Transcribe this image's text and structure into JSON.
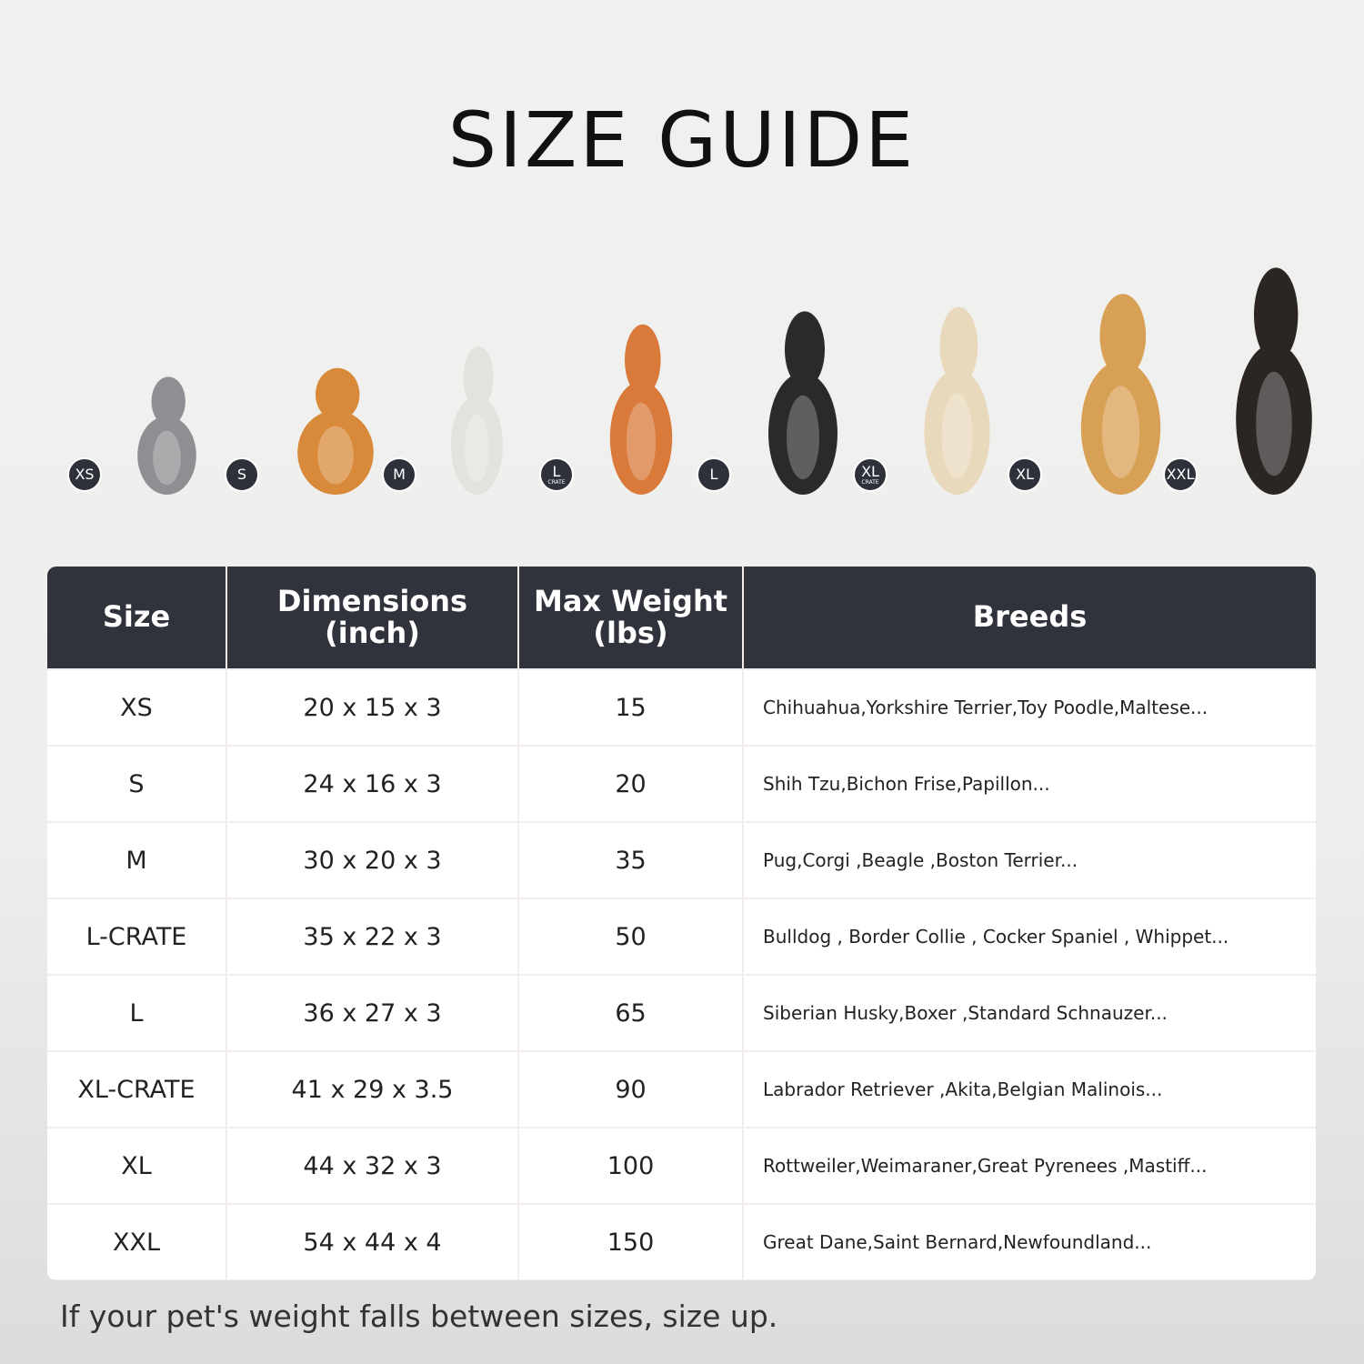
{
  "title": "SIZE GUIDE",
  "pets": [
    {
      "badge": "XS",
      "sub": "",
      "animal": "cat",
      "color": "#8f8f93"
    },
    {
      "badge": "S",
      "sub": "",
      "animal": "pomeranian",
      "color": "#d88a3a"
    },
    {
      "badge": "M",
      "sub": "",
      "animal": "french-bulldog",
      "color": "#e4e2de"
    },
    {
      "badge": "L",
      "sub": "CRATE",
      "animal": "shiba-inu",
      "color": "#d9793a"
    },
    {
      "badge": "L",
      "sub": "",
      "animal": "border-collie",
      "color": "#2a2a2a"
    },
    {
      "badge": "XL",
      "sub": "CRATE",
      "animal": "labrador",
      "color": "#e8d8bc"
    },
    {
      "badge": "XL",
      "sub": "",
      "animal": "golden-retriever",
      "color": "#d8a055"
    },
    {
      "badge": "XXL",
      "sub": "",
      "animal": "doberman",
      "color": "#2b2523"
    }
  ],
  "table": {
    "headers": [
      "Size",
      "Dimensions\n(inch)",
      "Max Weight\n(lbs)",
      "Breeds"
    ],
    "rows": [
      [
        "XS",
        "20 x 15 x 3",
        "15",
        "Chihuahua,Yorkshire Terrier,Toy Poodle,Maltese..."
      ],
      [
        "S",
        "24 x 16 x 3",
        "20",
        "Shih Tzu,Bichon Frise,Papillon..."
      ],
      [
        "M",
        "30 x 20 x 3",
        "35",
        "Pug,Corgi ,Beagle ,Boston Terrier..."
      ],
      [
        "L-CRATE",
        "35 x 22 x 3",
        "50",
        "Bulldog , Border Collie , Cocker Spaniel , Whippet..."
      ],
      [
        "L",
        "36 x 27 x 3",
        "65",
        "Siberian Husky,Boxer ,Standard Schnauzer..."
      ],
      [
        "XL-CRATE",
        "41 x 29 x 3.5",
        "90",
        "Labrador Retriever ,Akita,Belgian Malinois..."
      ],
      [
        "XL",
        "44 x 32 x 3",
        "100",
        "Rottweiler,Weimaraner,Great Pyrenees ,Mastiff..."
      ],
      [
        "XXL",
        "54 x 44 x 4",
        "150",
        "Great Dane,Saint Bernard,Newfoundland..."
      ]
    ]
  },
  "note": "If your pet's weight falls between sizes, size up."
}
